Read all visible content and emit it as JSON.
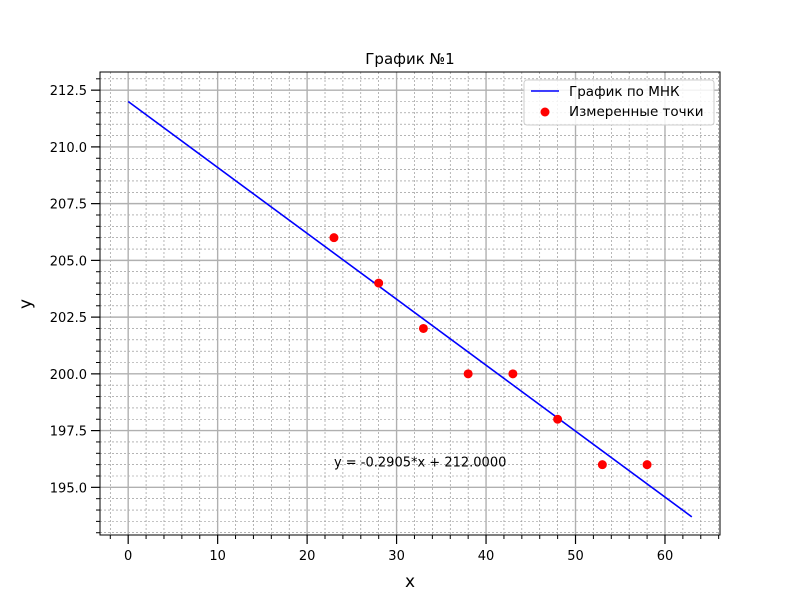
{
  "chart_data": {
    "type": "scatter",
    "title": "График №1",
    "xlabel": "x",
    "ylabel": "y",
    "xlim": [
      -3.15,
      66.15
    ],
    "ylim": [
      192.9,
      213.3
    ],
    "grid": true,
    "legend_position": "top-right",
    "x_ticks": [
      0,
      10,
      20,
      30,
      40,
      50,
      60
    ],
    "x_tick_labels": [
      "0",
      "10",
      "20",
      "30",
      "40",
      "50",
      "60"
    ],
    "y_ticks": [
      195.0,
      197.5,
      200.0,
      202.5,
      205.0,
      207.5,
      210.0,
      212.5
    ],
    "y_tick_labels": [
      "195.0",
      "197.5",
      "200.0",
      "202.5",
      "205.0",
      "207.5",
      "210.0",
      "212.5"
    ],
    "series": [
      {
        "name": "График по МНК",
        "kind": "line",
        "color": "#0000ff",
        "x": [
          0,
          63
        ],
        "y": [
          212.0,
          193.7
        ]
      },
      {
        "name": "Измеренные точки",
        "kind": "scatter",
        "color": "#ff0000",
        "x": [
          23,
          28,
          33,
          38,
          43,
          48,
          53,
          58
        ],
        "y": [
          206,
          204,
          202,
          200,
          200,
          198,
          196,
          196
        ]
      }
    ],
    "annotations": [
      {
        "text": "y = -0.2905*x + 212.0000",
        "x": 23,
        "y": 196.1
      }
    ]
  }
}
